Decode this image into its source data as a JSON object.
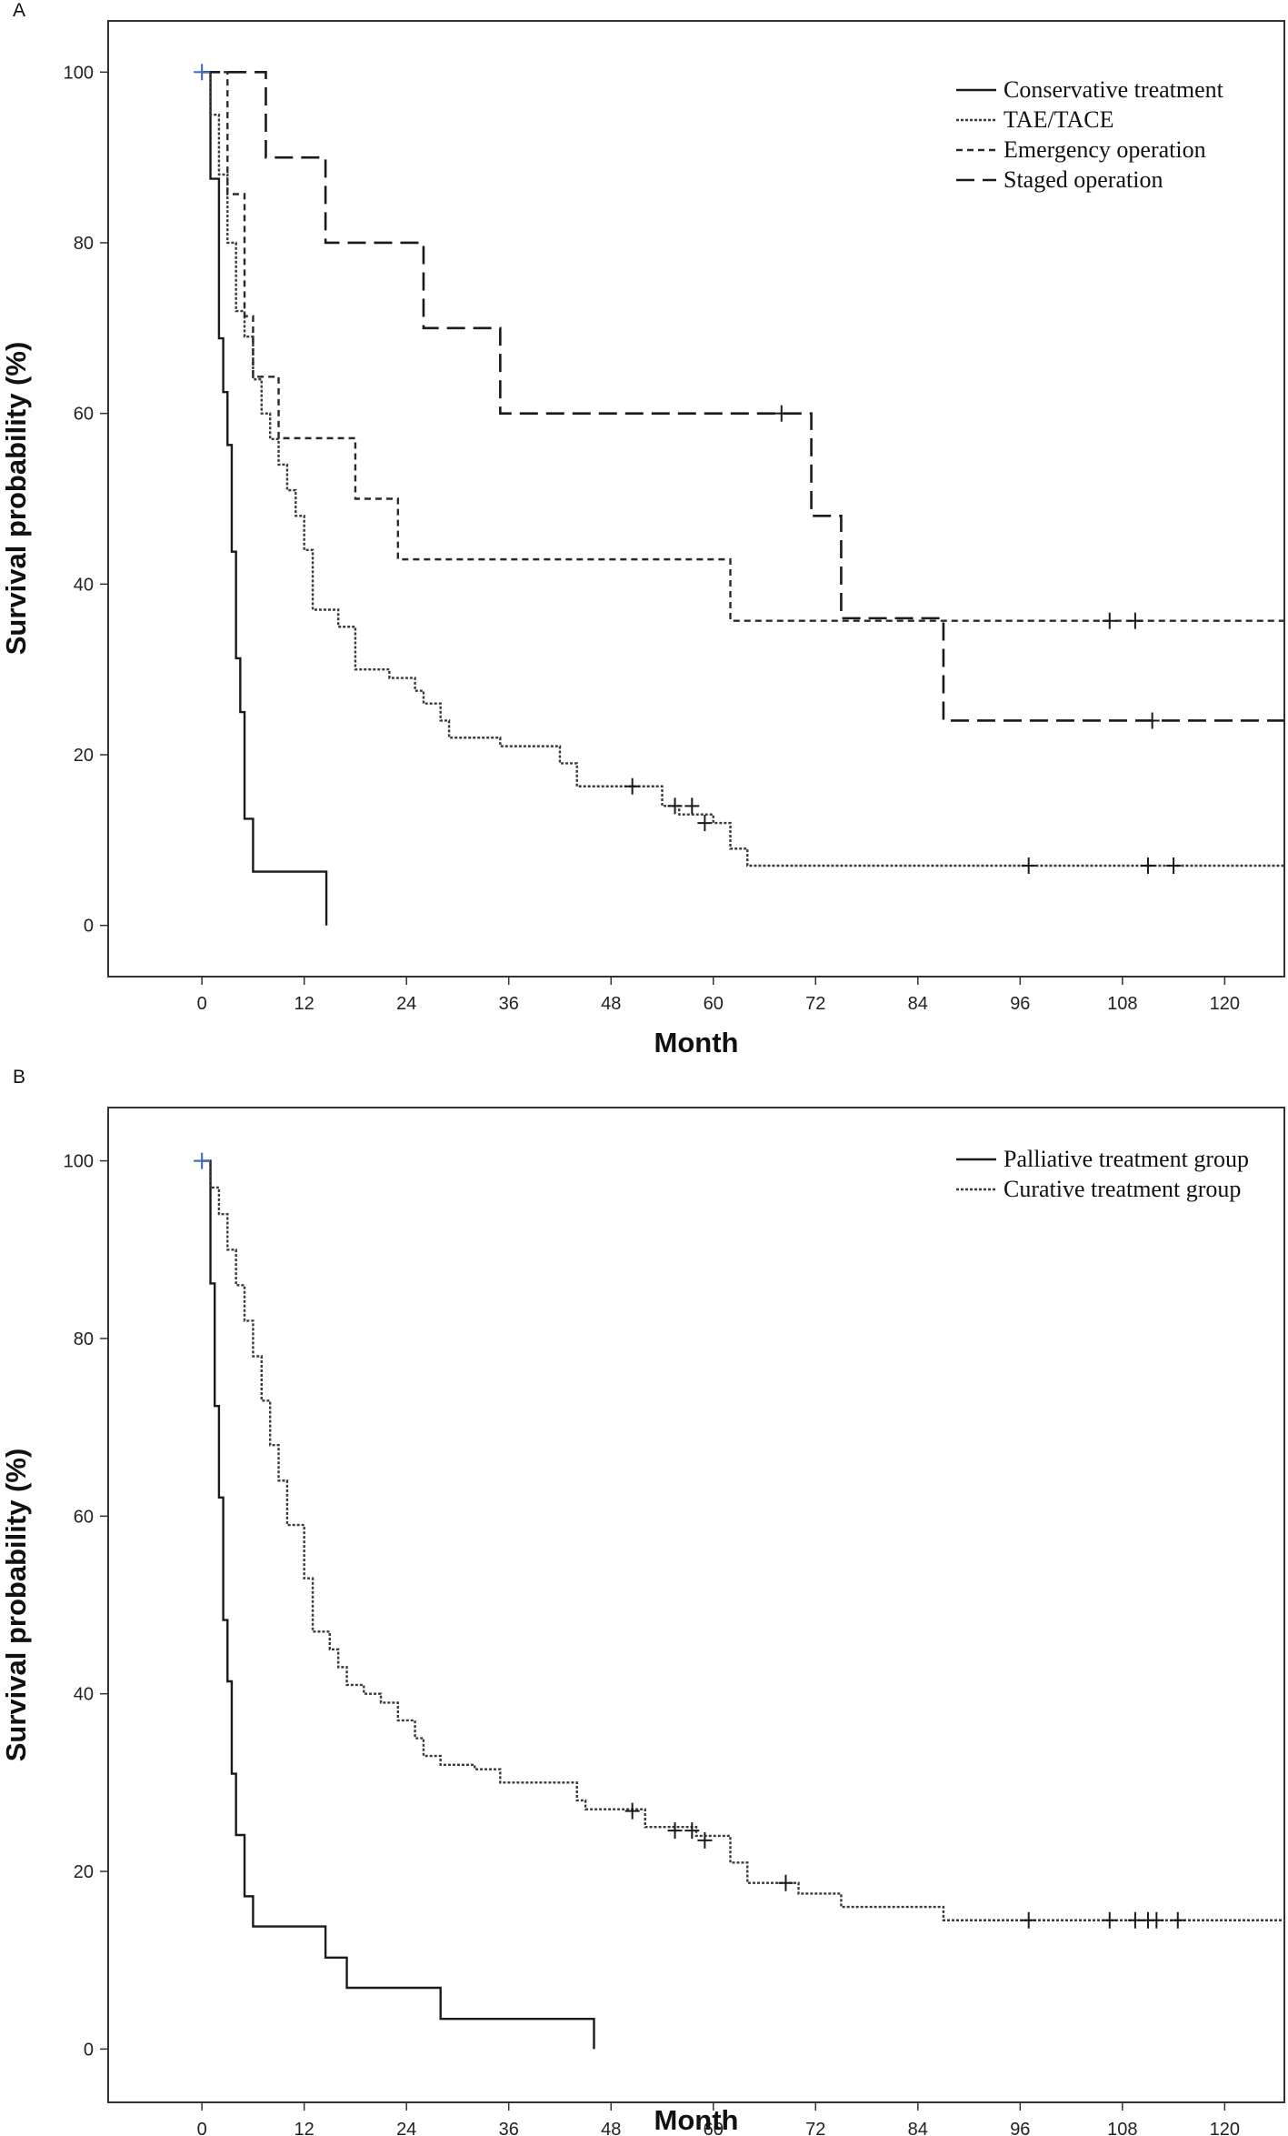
{
  "chart_data": [
    {
      "type": "line",
      "panel_label": "A",
      "xlabel": "Month",
      "ylabel": "Survival probability (%)",
      "xlim": [
        -11,
        127
      ],
      "ylim": [
        -6,
        106
      ],
      "xticks": [
        0,
        12,
        24,
        36,
        48,
        60,
        72,
        84,
        96,
        108,
        120
      ],
      "yticks": [
        0,
        20,
        40,
        60,
        80,
        100
      ],
      "legend_position": "top-right",
      "start_marker": {
        "x": 0,
        "y": 100
      },
      "series": [
        {
          "name": "Conservative treatment",
          "style": "solid",
          "steps": [
            [
              0,
              100
            ],
            [
              1,
              87.5
            ],
            [
              2,
              68.8
            ],
            [
              2.5,
              62.5
            ],
            [
              3,
              56.3
            ],
            [
              3.5,
              43.8
            ],
            [
              4,
              31.3
            ],
            [
              4.5,
              25
            ],
            [
              5,
              12.5
            ],
            [
              6,
              6.3
            ],
            [
              14.6,
              0
            ]
          ],
          "end": 14.6,
          "censored": []
        },
        {
          "name": "TAE/TACE",
          "style": "dotted",
          "steps": [
            [
              0,
              100
            ],
            [
              1,
              95
            ],
            [
              2,
              88
            ],
            [
              3,
              80
            ],
            [
              4,
              72
            ],
            [
              5,
              69
            ],
            [
              6,
              64
            ],
            [
              7,
              60
            ],
            [
              8,
              57
            ],
            [
              9,
              54
            ],
            [
              10,
              51
            ],
            [
              11,
              48
            ],
            [
              12,
              44
            ],
            [
              13,
              37
            ],
            [
              16,
              35
            ],
            [
              18,
              30
            ],
            [
              22,
              29
            ],
            [
              25,
              27.5
            ],
            [
              26,
              26
            ],
            [
              28,
              24
            ],
            [
              29,
              22
            ],
            [
              35,
              21
            ],
            [
              42,
              19
            ],
            [
              44,
              16.3
            ],
            [
              54,
              14
            ],
            [
              56,
              13
            ],
            [
              60,
              12
            ],
            [
              62,
              9
            ],
            [
              64,
              7
            ]
          ],
          "end": 127,
          "censored": [
            [
              50.5,
              16.3
            ],
            [
              55.5,
              14
            ],
            [
              57.5,
              14
            ],
            [
              59,
              12
            ],
            [
              97,
              7
            ],
            [
              111,
              7
            ],
            [
              114,
              7
            ]
          ]
        },
        {
          "name": "Emergency operation",
          "style": "short-dash",
          "steps": [
            [
              0,
              100
            ],
            [
              3,
              85.7
            ],
            [
              5,
              71.4
            ],
            [
              6,
              64.3
            ],
            [
              9,
              57.1
            ],
            [
              18,
              50
            ],
            [
              23,
              42.9
            ],
            [
              62,
              35.7
            ]
          ],
          "end": 127,
          "censored": [
            [
              106.5,
              35.7
            ],
            [
              109.5,
              35.7
            ]
          ]
        },
        {
          "name": "Staged operation",
          "style": "long-dash",
          "steps": [
            [
              0,
              100
            ],
            [
              7.5,
              90
            ],
            [
              14.5,
              80
            ],
            [
              26,
              70
            ],
            [
              35,
              60
            ],
            [
              71.5,
              48
            ],
            [
              75,
              36
            ],
            [
              87,
              24
            ]
          ],
          "end": 127,
          "censored": [
            [
              68,
              60
            ],
            [
              111.5,
              24
            ]
          ]
        }
      ]
    },
    {
      "type": "line",
      "panel_label": "B",
      "xlabel": "Month",
      "ylabel": "Survival probability (%)",
      "xlim": [
        -11,
        127
      ],
      "ylim": [
        -6,
        106
      ],
      "xticks": [
        0,
        12,
        24,
        36,
        48,
        60,
        72,
        84,
        96,
        108,
        120
      ],
      "yticks": [
        0,
        20,
        40,
        60,
        80,
        100
      ],
      "legend_position": "top-right",
      "start_marker": {
        "x": 0,
        "y": 100
      },
      "series": [
        {
          "name": "Palliative treatment group",
          "style": "solid",
          "steps": [
            [
              0,
              100
            ],
            [
              1,
              86.2
            ],
            [
              1.5,
              72.4
            ],
            [
              2,
              62.1
            ],
            [
              2.5,
              48.3
            ],
            [
              3,
              41.4
            ],
            [
              3.5,
              31
            ],
            [
              4,
              24.1
            ],
            [
              5,
              17.2
            ],
            [
              6,
              13.8
            ],
            [
              14.5,
              10.3
            ],
            [
              17,
              6.9
            ],
            [
              28,
              3.4
            ],
            [
              46,
              0
            ]
          ],
          "end": 46,
          "censored": []
        },
        {
          "name": "Curative treatment group",
          "style": "dotted",
          "steps": [
            [
              0,
              100
            ],
            [
              1,
              97
            ],
            [
              2,
              94
            ],
            [
              3,
              90
            ],
            [
              4,
              86
            ],
            [
              5,
              82
            ],
            [
              6,
              78
            ],
            [
              7,
              73
            ],
            [
              8,
              68
            ],
            [
              9,
              64
            ],
            [
              10,
              59
            ],
            [
              12,
              53
            ],
            [
              13,
              47
            ],
            [
              15,
              45
            ],
            [
              16,
              43
            ],
            [
              17,
              41
            ],
            [
              19,
              40
            ],
            [
              21,
              39
            ],
            [
              23,
              37
            ],
            [
              25,
              35
            ],
            [
              26,
              33
            ],
            [
              28,
              32
            ],
            [
              32,
              31.5
            ],
            [
              35,
              30
            ],
            [
              44,
              28
            ],
            [
              45,
              27
            ],
            [
              52,
              25
            ],
            [
              58,
              24
            ],
            [
              62,
              21
            ],
            [
              64,
              18.7
            ],
            [
              70,
              17.5
            ],
            [
              75,
              16
            ],
            [
              87,
              14.5
            ]
          ],
          "end": 127,
          "censored": [
            [
              50.5,
              26.8
            ],
            [
              55.5,
              24.6
            ],
            [
              57.5,
              24.6
            ],
            [
              59,
              23.5
            ],
            [
              68.5,
              18.7
            ],
            [
              97,
              14.5
            ],
            [
              106.5,
              14.5
            ],
            [
              109.5,
              14.5
            ],
            [
              111,
              14.5
            ],
            [
              112,
              14.5
            ],
            [
              114.5,
              14.5
            ]
          ]
        }
      ]
    }
  ]
}
